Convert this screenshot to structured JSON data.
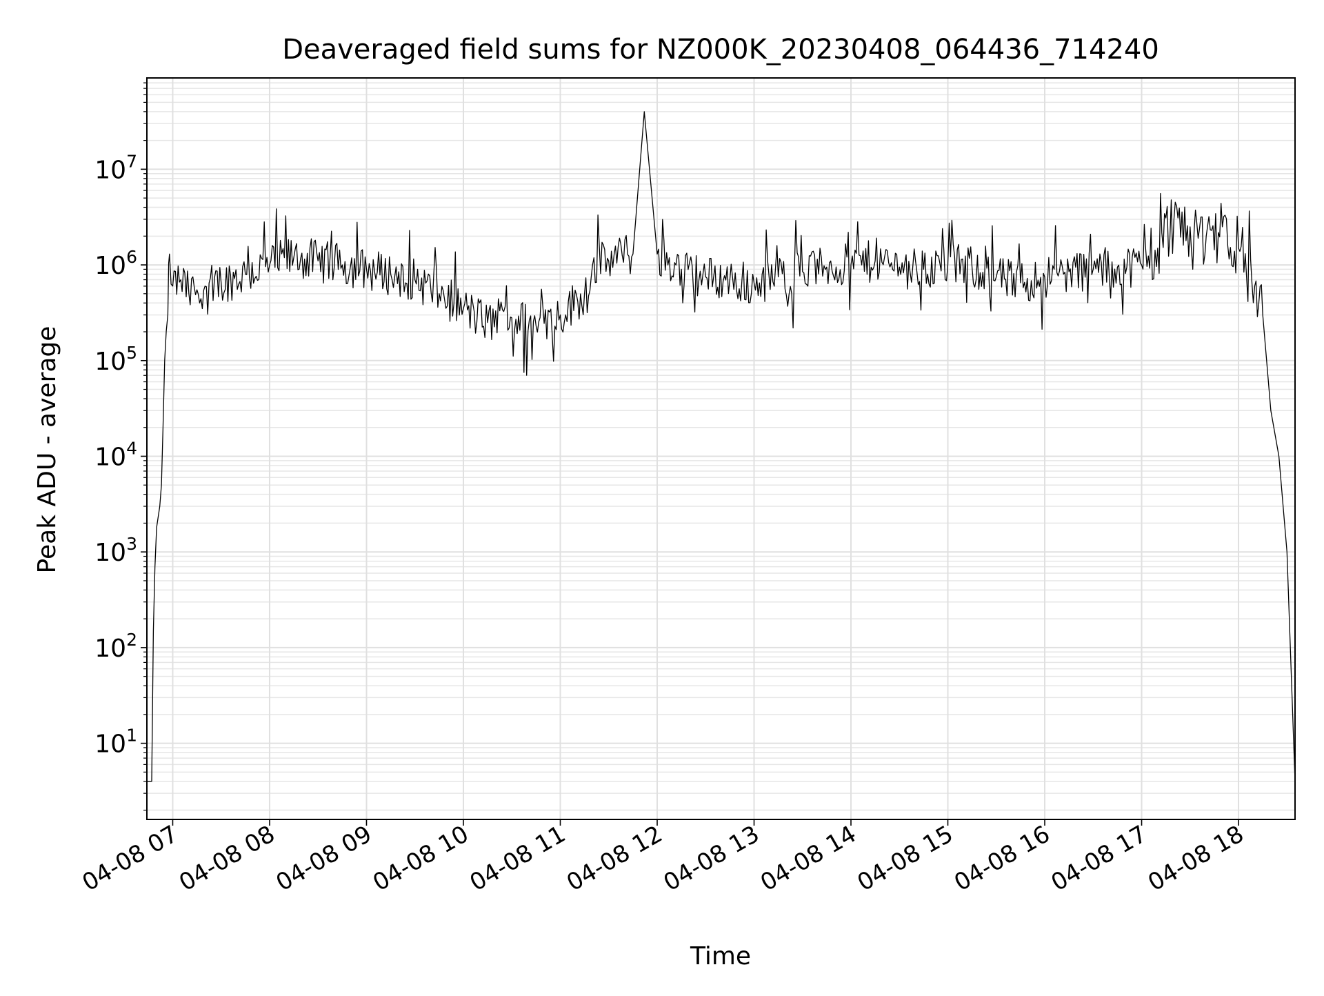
{
  "chart_data": {
    "type": "line",
    "title": "Deaveraged field sums for NZ000K_20230408_064436_714240",
    "xlabel": "Time",
    "ylabel": "Peak ADU - average",
    "yscale": "log",
    "xlim": [
      "04-08 06:44",
      "04-08 18:35"
    ],
    "ylim": [
      1.6,
      90000000
    ],
    "grid": "on (major and minor)",
    "x_tick_labels": [
      "04-08 07",
      "04-08 08",
      "04-08 09",
      "04-08 10",
      "04-08 11",
      "04-08 12",
      "04-08 13",
      "04-08 14",
      "04-08 15",
      "04-08 16",
      "04-08 17",
      "04-08 18"
    ],
    "y_tick_labels": [
      {
        "base": "10",
        "exp": "1",
        "value": 10
      },
      {
        "base": "10",
        "exp": "2",
        "value": 100
      },
      {
        "base": "10",
        "exp": "3",
        "value": 1000
      },
      {
        "base": "10",
        "exp": "4",
        "value": 10000
      },
      {
        "base": "10",
        "exp": "5",
        "value": 100000
      },
      {
        "base": "10",
        "exp": "6",
        "value": 1000000
      },
      {
        "base": "10",
        "exp": "7",
        "value": 10000000
      }
    ],
    "series": [
      {
        "color": "#000000",
        "points": [
          [
            "04-08 06:44",
            4
          ],
          [
            "04-08 06:47",
            4
          ],
          [
            "04-08 06:48",
            150
          ],
          [
            "04-08 06:49",
            700
          ],
          [
            "04-08 06:50",
            1800
          ],
          [
            "04-08 06:52",
            3000
          ],
          [
            "04-08 06:53",
            5000
          ],
          [
            "04-08 06:54",
            20000
          ],
          [
            "04-08 06:55",
            100000
          ],
          [
            "04-08 06:57",
            300000
          ],
          [
            "04-08 06:58",
            1300000
          ],
          [
            "04-08 07:00",
            600000
          ],
          [
            "04-08 07:05",
            700000
          ],
          [
            "04-08 07:10",
            500000
          ],
          [
            "04-08 07:15",
            550000
          ],
          [
            "04-08 07:20",
            600000
          ],
          [
            "04-08 07:30",
            650000
          ],
          [
            "04-08 07:45",
            800000
          ],
          [
            "04-08 08:00",
            1000000
          ],
          [
            "04-08 08:15",
            1200000
          ],
          [
            "04-08 08:30",
            1100000
          ],
          [
            "04-08 08:45",
            1000000
          ],
          [
            "04-08 09:00",
            900000
          ],
          [
            "04-08 09:15",
            800000
          ],
          [
            "04-08 09:30",
            700000
          ],
          [
            "04-08 09:45",
            500000
          ],
          [
            "04-08 10:00",
            350000
          ],
          [
            "04-08 10:15",
            250000
          ],
          [
            "04-08 10:30",
            280000
          ],
          [
            "04-08 10:45",
            230000
          ],
          [
            "04-08 11:00",
            300000
          ],
          [
            "04-08 11:15",
            500000
          ],
          [
            "04-08 11:20",
            1000000
          ],
          [
            "04-08 11:30",
            1100000
          ],
          [
            "04-08 11:45",
            1300000
          ],
          [
            "04-08 11:52",
            40000000
          ],
          [
            "04-08 12:00",
            1300000
          ],
          [
            "04-08 12:15",
            900000
          ],
          [
            "04-08 12:30",
            750000
          ],
          [
            "04-08 12:45",
            700000
          ],
          [
            "04-08 13:00",
            650000
          ],
          [
            "04-08 13:15",
            750000
          ],
          [
            "04-08 13:30",
            850000
          ],
          [
            "04-08 13:45",
            950000
          ],
          [
            "04-08 14:00",
            1000000
          ],
          [
            "04-08 14:15",
            1100000
          ],
          [
            "04-08 14:30",
            950000
          ],
          [
            "04-08 14:45",
            900000
          ],
          [
            "04-08 15:00",
            1000000
          ],
          [
            "04-08 15:15",
            950000
          ],
          [
            "04-08 15:30",
            750000
          ],
          [
            "04-08 15:45",
            650000
          ],
          [
            "04-08 16:00",
            750000
          ],
          [
            "04-08 16:15",
            850000
          ],
          [
            "04-08 16:30",
            900000
          ],
          [
            "04-08 16:45",
            950000
          ],
          [
            "04-08 17:00",
            1000000
          ],
          [
            "04-08 17:10",
            1500000
          ],
          [
            "04-08 17:20",
            3000000
          ],
          [
            "04-08 17:30",
            2500000
          ],
          [
            "04-08 17:40",
            2000000
          ],
          [
            "04-08 17:50",
            2500000
          ],
          [
            "04-08 18:00",
            1500000
          ],
          [
            "04-08 18:10",
            600000
          ],
          [
            "04-08 18:15",
            300000
          ],
          [
            "04-08 18:20",
            30000
          ],
          [
            "04-08 18:25",
            10000
          ],
          [
            "04-08 18:30",
            1000
          ],
          [
            "04-08 18:35",
            4
          ]
        ]
      }
    ]
  }
}
